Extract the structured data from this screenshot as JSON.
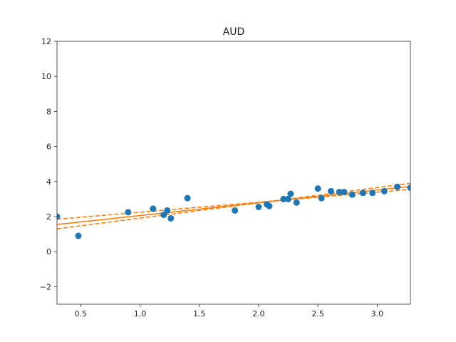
{
  "chart_data": {
    "type": "scatter",
    "title": "AUD",
    "xlabel": "",
    "ylabel": "",
    "xlim": [
      0.3,
      3.28
    ],
    "ylim": [
      -3,
      12
    ],
    "xticks": [
      0.5,
      1.0,
      1.5,
      2.0,
      2.5,
      3.0
    ],
    "xtick_labels": [
      "0.5",
      "1.0",
      "1.5",
      "2.0",
      "2.5",
      "3.0"
    ],
    "yticks": [
      -2,
      0,
      2,
      4,
      6,
      8,
      10,
      12
    ],
    "ytick_labels": [
      "−2",
      "0",
      "2",
      "4",
      "6",
      "8",
      "10",
      "12"
    ],
    "grid": false,
    "colors": {
      "points": "#1f77b4",
      "fit": "#ff7f0e",
      "axes": "#262626"
    },
    "series": [
      {
        "kind": "scatter",
        "x": [
          0.3,
          0.48,
          0.9,
          1.11,
          1.2,
          1.23,
          1.26,
          1.4,
          1.8,
          2.0,
          2.07,
          2.09,
          2.21,
          2.25,
          2.27,
          2.32,
          2.5,
          2.53,
          2.61,
          2.68,
          2.72,
          2.79,
          2.88,
          2.96,
          3.06,
          3.17,
          3.28
        ],
        "y": [
          2.0,
          0.9,
          2.25,
          2.45,
          2.1,
          2.35,
          1.9,
          3.05,
          2.35,
          2.55,
          2.7,
          2.6,
          3.0,
          3.0,
          3.3,
          2.8,
          3.6,
          3.05,
          3.45,
          3.4,
          3.4,
          3.25,
          3.35,
          3.35,
          3.45,
          3.7,
          3.65
        ]
      },
      {
        "kind": "line",
        "style": "solid",
        "x": [
          0.3,
          3.28
        ],
        "y": [
          1.55,
          3.72
        ]
      },
      {
        "kind": "line",
        "style": "dashed",
        "x": [
          0.3,
          3.28
        ],
        "y": [
          1.85,
          3.55
        ]
      },
      {
        "kind": "line",
        "style": "dashed",
        "x": [
          0.3,
          3.28
        ],
        "y": [
          1.3,
          3.9
        ]
      }
    ]
  }
}
